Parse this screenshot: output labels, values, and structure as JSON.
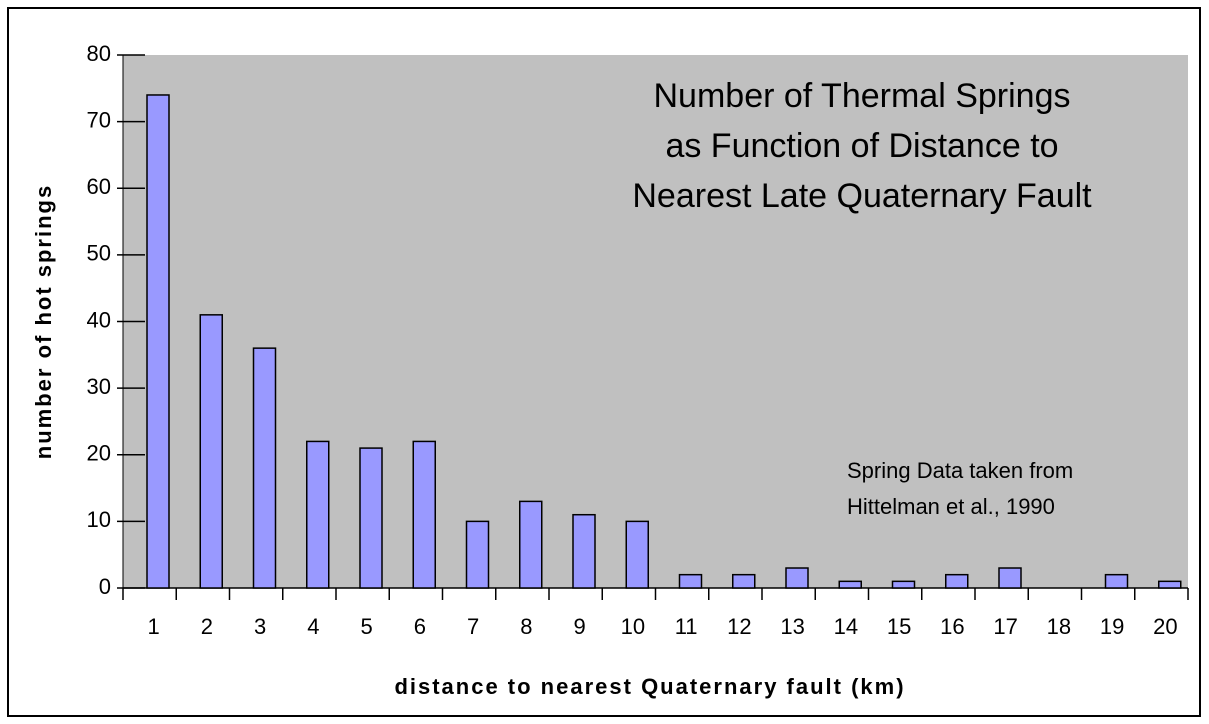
{
  "chart_data": {
    "type": "bar",
    "title": [
      "Number of Thermal Springs",
      "as Function of Distance to",
      "Nearest Late Quaternary Fault"
    ],
    "annotation": [
      "Spring Data taken from",
      "Hittelman et al., 1990"
    ],
    "x_label": "distance to nearest Quaternary fault (km)",
    "y_label": "number of hot springs",
    "categories": [
      1,
      2,
      3,
      4,
      5,
      6,
      7,
      8,
      9,
      10,
      11,
      12,
      13,
      14,
      15,
      16,
      17,
      18,
      19,
      20
    ],
    "values": [
      74,
      41,
      36,
      22,
      21,
      22,
      10,
      13,
      11,
      10,
      2,
      2,
      3,
      1,
      1,
      2,
      3,
      0,
      2,
      1
    ],
    "color": "#9999ff",
    "ylim": [
      0,
      80
    ],
    "yticks": [
      0,
      10,
      20,
      30,
      40,
      50,
      60,
      70,
      80
    ],
    "grid": false
  }
}
